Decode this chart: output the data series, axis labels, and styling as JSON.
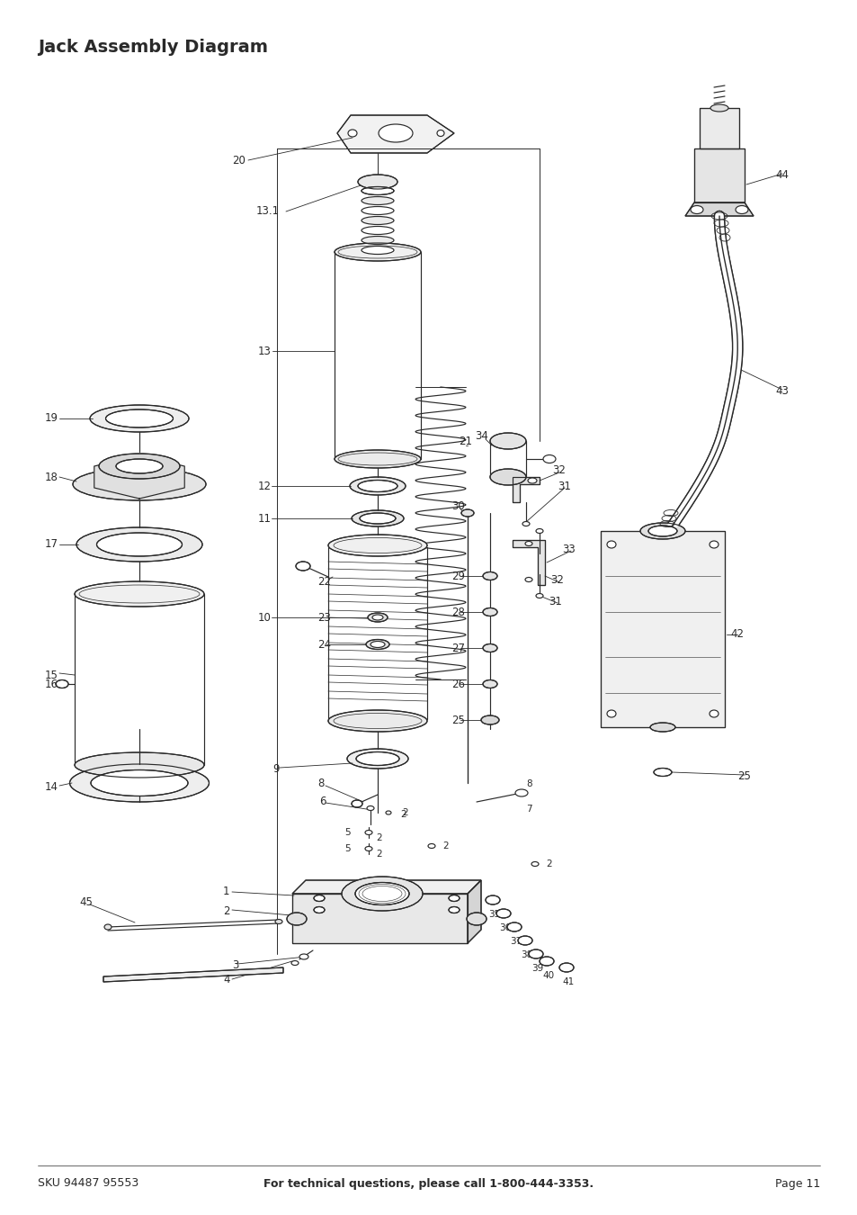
{
  "title": "Jack Assembly Diagram",
  "footer_left": "SKU 94487 95553",
  "footer_center": "For technical questions, please call 1-800-444-3353.",
  "footer_right": "Page 11",
  "bg_color": "#ffffff",
  "line_color": "#2a2a2a",
  "title_fontsize": 13,
  "footer_fontsize": 9,
  "label_fontsize": 8.5
}
